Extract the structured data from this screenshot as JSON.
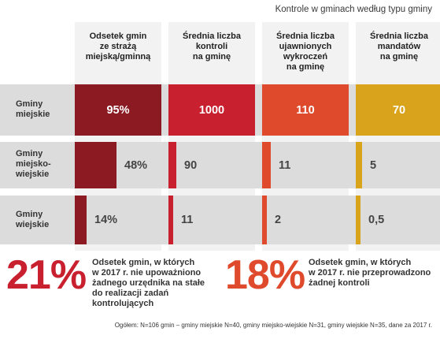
{
  "title": "Kontrole w gminach według typu gminy",
  "colors": {
    "col1": "#8b1a23",
    "col2": "#c8202f",
    "col3": "#e04a2c",
    "col4": "#d9a41b",
    "callout1": "#c8202f",
    "callout2": "#e04a2c"
  },
  "chart_data": {
    "type": "bar",
    "categories": [
      "Gminy miejskie",
      "Gminy miejsko-wiejskie",
      "Gminy wiejskie"
    ],
    "series": [
      {
        "name": "Odsetek gmin ze strażą miejską/gminną",
        "values": [
          95,
          48,
          14
        ],
        "labels": [
          "95%",
          "48%",
          "14%"
        ]
      },
      {
        "name": "Średnia liczba kontroli na gminę",
        "values": [
          1000,
          90,
          11
        ],
        "labels": [
          "1000",
          "90",
          "11"
        ]
      },
      {
        "name": "Średnia liczba ujawnionych wykroczeń na gminę",
        "values": [
          110,
          11,
          2
        ],
        "labels": [
          "110",
          "11",
          "2"
        ]
      },
      {
        "name": "Średnia liczba mandatów na gminę",
        "values": [
          70,
          5,
          0.5
        ],
        "labels": [
          "70",
          "5",
          "0,5"
        ]
      }
    ]
  },
  "columns": [
    {
      "header": "Odsetek gmin\nze strażą\nmiejską/gminną"
    },
    {
      "header": "Średnia liczba\nkontroli\nna gminę"
    },
    {
      "header": "Średnia liczba\nujawnionych\nwykroczeń\nna gminę"
    },
    {
      "header": "Średnia liczba\nmandatów\nna gminę"
    }
  ],
  "rows": [
    {
      "label": "Gminy\nmiejskie"
    },
    {
      "label": "Gminy\nmiejsko-\nwiejskie"
    },
    {
      "label": "Gminy\nwiejskie"
    }
  ],
  "callouts": [
    {
      "number": "21%",
      "text": "Odsetek gmin, w których\nw 2017 r. nie upoważniono\nżadnego urzędnika na stałe\ndo realizacji zadań\nkontrolujących"
    },
    {
      "number": "18%",
      "text": "Odsetek gmin, w których\nw 2017 r. nie przeprowadzono\nżadnej kontroli"
    }
  ],
  "footnote": "Ogółem:  N=106 gmin – gminy miejskie N=40, gminy miejsko-wiejskie N=31, gminy wiejskie N=35, dane za 2017 r."
}
